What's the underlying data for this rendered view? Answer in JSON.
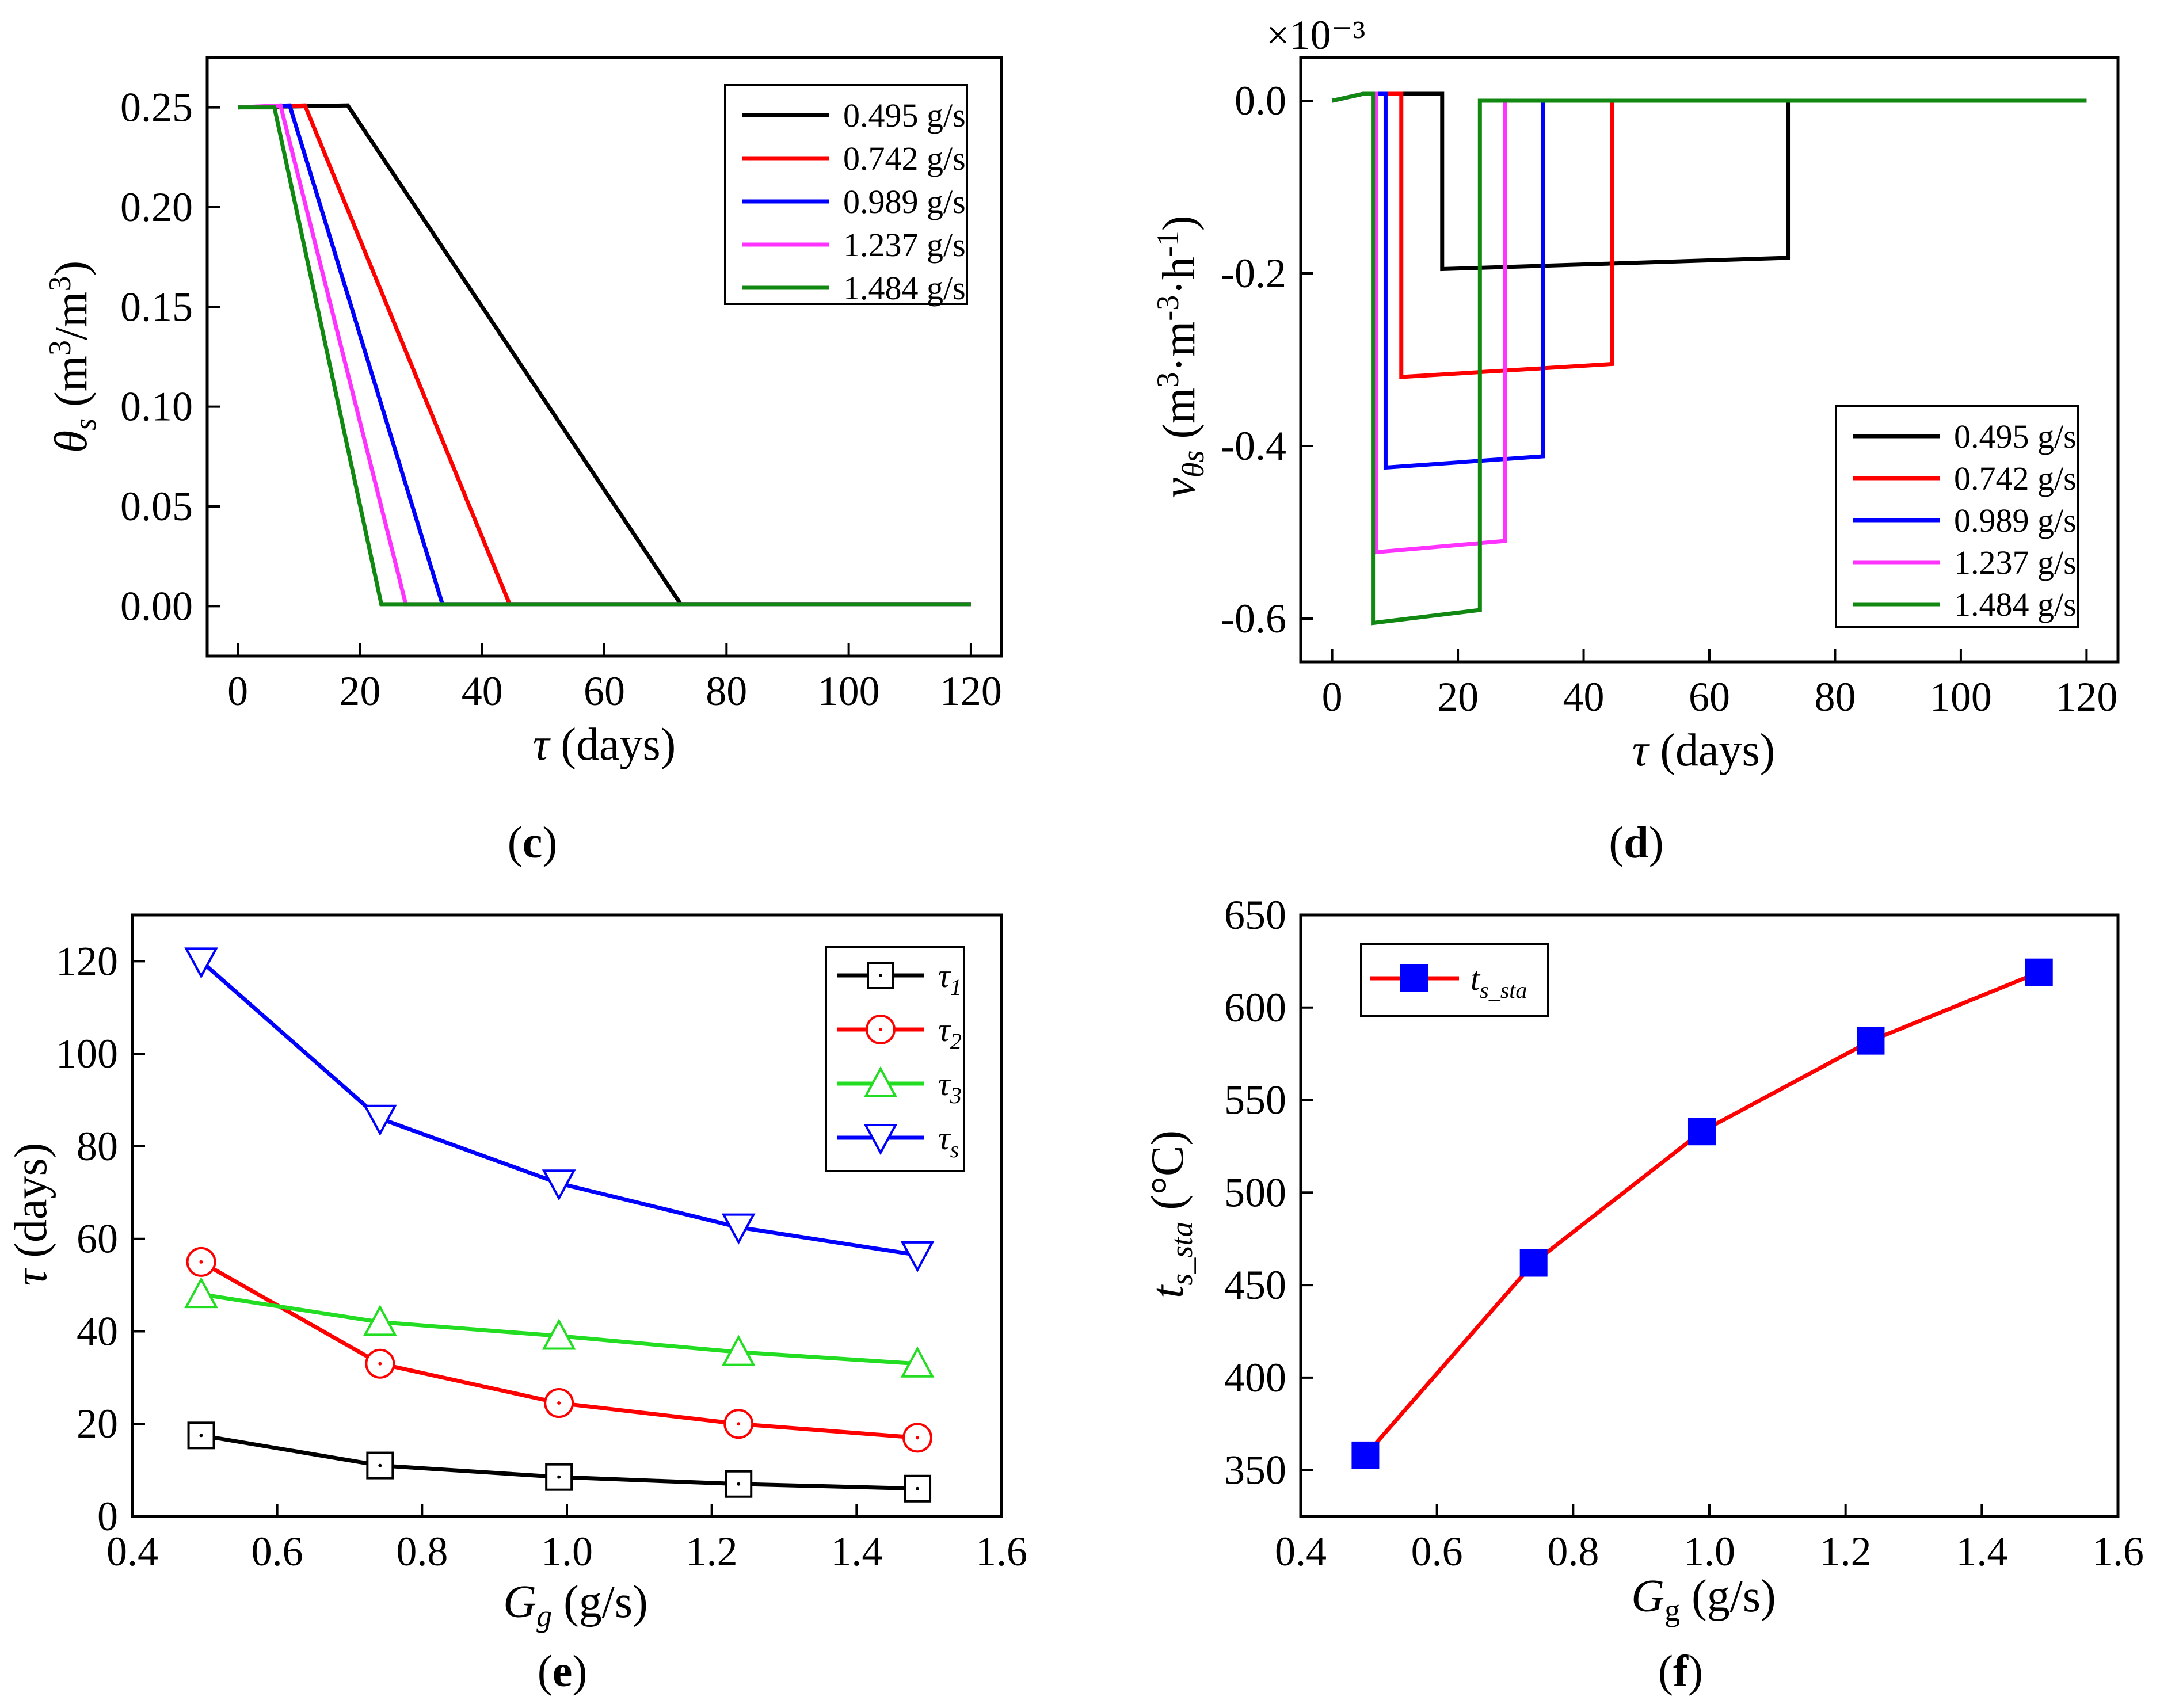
{
  "figure": {
    "colors": {
      "black": "#000000",
      "red": "#ff0000",
      "blue": "#0000ff",
      "magenta": "#ff33ff",
      "green": "#118811",
      "lime": "#22dd22"
    }
  },
  "chart_data": [
    {
      "id": "c",
      "type": "line",
      "caption_letter": "c",
      "xlabel": "τ (days)",
      "ylabel": "θs (m³/m³)",
      "xlim": [
        -5,
        125
      ],
      "ylim": [
        -0.025,
        0.275
      ],
      "xticks": [
        0,
        20,
        40,
        60,
        80,
        100,
        120
      ],
      "xtick_labels": [
        "0",
        "20",
        "40",
        "60",
        "80",
        "100",
        "120"
      ],
      "yticks": [
        0,
        0.05,
        0.1,
        0.15,
        0.2,
        0.25
      ],
      "ytick_labels": [
        "0.00",
        "0.05",
        "0.10",
        "0.15",
        "0.20",
        "0.25"
      ],
      "legend_position": "top-right",
      "series": [
        {
          "name": "0.495 g/s",
          "color": "#000000",
          "x": [
            0,
            18,
            72.5,
            120
          ],
          "y": [
            0.25,
            0.251,
            0.001,
            0.001
          ]
        },
        {
          "name": "0.742 g/s",
          "color": "#ff0000",
          "x": [
            0,
            11,
            44.5,
            120
          ],
          "y": [
            0.25,
            0.251,
            0.001,
            0.001
          ]
        },
        {
          "name": "0.989 g/s",
          "color": "#0000ff",
          "x": [
            0,
            8.5,
            33.5,
            120
          ],
          "y": [
            0.25,
            0.251,
            0.001,
            0.001
          ]
        },
        {
          "name": "1.237 g/s",
          "color": "#ff33ff",
          "x": [
            0,
            7,
            27.5,
            120
          ],
          "y": [
            0.25,
            0.251,
            0.001,
            0.001
          ]
        },
        {
          "name": "1.484 g/s",
          "color": "#118811",
          "x": [
            0,
            6,
            23.5,
            120
          ],
          "y": [
            0.25,
            0.25,
            0.001,
            0.001
          ]
        }
      ]
    },
    {
      "id": "d",
      "type": "line",
      "caption_letter": "d",
      "xlabel": "τ (days)",
      "ylabel": "vθs (m³·m⁻³·h⁻¹)",
      "axis_multiplier": "×10⁻³",
      "xlim": [
        -5,
        125
      ],
      "ylim": [
        -0.65,
        0.05
      ],
      "xticks": [
        0,
        20,
        40,
        60,
        80,
        100,
        120
      ],
      "xtick_labels": [
        "0",
        "20",
        "40",
        "60",
        "80",
        "100",
        "120"
      ],
      "yticks": [
        -0.6,
        -0.4,
        -0.2,
        0
      ],
      "ytick_labels": [
        "-0.6",
        "-0.4",
        "-0.2",
        "0.0"
      ],
      "legend_position": "bottom-right",
      "series": [
        {
          "name": "0.495 g/s",
          "color": "#000000",
          "x": [
            0,
            5,
            17.5,
            17.5,
            72.5,
            72.5,
            120
          ],
          "y": [
            0,
            0.008,
            0.008,
            -0.195,
            -0.182,
            0,
            0
          ]
        },
        {
          "name": "0.742 g/s",
          "color": "#ff0000",
          "x": [
            0,
            5,
            11,
            11,
            44.5,
            44.5,
            120
          ],
          "y": [
            0,
            0.008,
            0.008,
            -0.32,
            -0.305,
            0,
            0
          ]
        },
        {
          "name": "0.989 g/s",
          "color": "#0000ff",
          "x": [
            0,
            5,
            8.5,
            8.5,
            33.5,
            33.5,
            120
          ],
          "y": [
            0,
            0.008,
            0.008,
            -0.425,
            -0.412,
            0,
            0
          ]
        },
        {
          "name": "1.237 g/s",
          "color": "#ff33ff",
          "x": [
            0,
            5,
            7,
            7,
            27.5,
            27.5,
            120
          ],
          "y": [
            0,
            0.008,
            0.008,
            -0.523,
            -0.51,
            0,
            0
          ]
        },
        {
          "name": "1.484 g/s",
          "color": "#118811",
          "x": [
            0,
            5,
            6.5,
            6.5,
            23.5,
            23.5,
            120
          ],
          "y": [
            0,
            0.008,
            0.008,
            -0.605,
            -0.59,
            0,
            0
          ]
        }
      ]
    },
    {
      "id": "e",
      "type": "line",
      "caption_letter": "e",
      "xlabel": "Gg (g/s)",
      "ylabel": "τ (days)",
      "xlim": [
        0.4,
        1.6
      ],
      "ylim": [
        0,
        130
      ],
      "xticks": [
        0.4,
        0.6,
        0.8,
        1.0,
        1.2,
        1.4,
        1.6
      ],
      "xtick_labels": [
        "0.4",
        "0.6",
        "0.8",
        "1.0",
        "1.2",
        "1.4",
        "1.6"
      ],
      "yticks": [
        0,
        20,
        40,
        60,
        80,
        100,
        120
      ],
      "ytick_labels": [
        "0",
        "20",
        "40",
        "60",
        "80",
        "100",
        "120"
      ],
      "legend_position": "top-right",
      "x": [
        0.495,
        0.742,
        0.989,
        1.237,
        1.484
      ],
      "series": [
        {
          "name": "τ1",
          "marker": "square",
          "color": "#000000",
          "values": [
            17.5,
            11,
            8.5,
            7,
            6
          ]
        },
        {
          "name": "τ2",
          "marker": "circle",
          "color": "#ff0000",
          "values": [
            55,
            33,
            24.5,
            20,
            17
          ]
        },
        {
          "name": "τ3",
          "marker": "triangle-up",
          "color": "#22dd22",
          "values": [
            48,
            42,
            39,
            35.5,
            33
          ]
        },
        {
          "name": "τs",
          "marker": "triangle-down",
          "color": "#0000ff",
          "values": [
            120,
            86,
            72,
            62.5,
            56.5
          ]
        }
      ]
    },
    {
      "id": "f",
      "type": "line",
      "caption_letter": "f",
      "xlabel": "Gg (g/s)",
      "ylabel": "ts_sta (°C)",
      "xlim": [
        0.4,
        1.6
      ],
      "ylim": [
        325,
        650
      ],
      "xticks": [
        0.4,
        0.6,
        0.8,
        1.0,
        1.2,
        1.4,
        1.6
      ],
      "xtick_labels": [
        "0.4",
        "0.6",
        "0.8",
        "1.0",
        "1.2",
        "1.4",
        "1.6"
      ],
      "yticks": [
        350,
        400,
        450,
        500,
        550,
        600,
        650
      ],
      "ytick_labels": [
        "350",
        "400",
        "450",
        "500",
        "550",
        "600",
        "650"
      ],
      "legend_position": "top-left",
      "x": [
        0.495,
        0.742,
        0.989,
        1.237,
        1.484
      ],
      "series": [
        {
          "name": "ts_sta",
          "marker": "filled-square",
          "color": "#ff0000",
          "marker_color": "#0000ff",
          "values": [
            358,
            462,
            533,
            582,
            619
          ]
        }
      ]
    }
  ]
}
